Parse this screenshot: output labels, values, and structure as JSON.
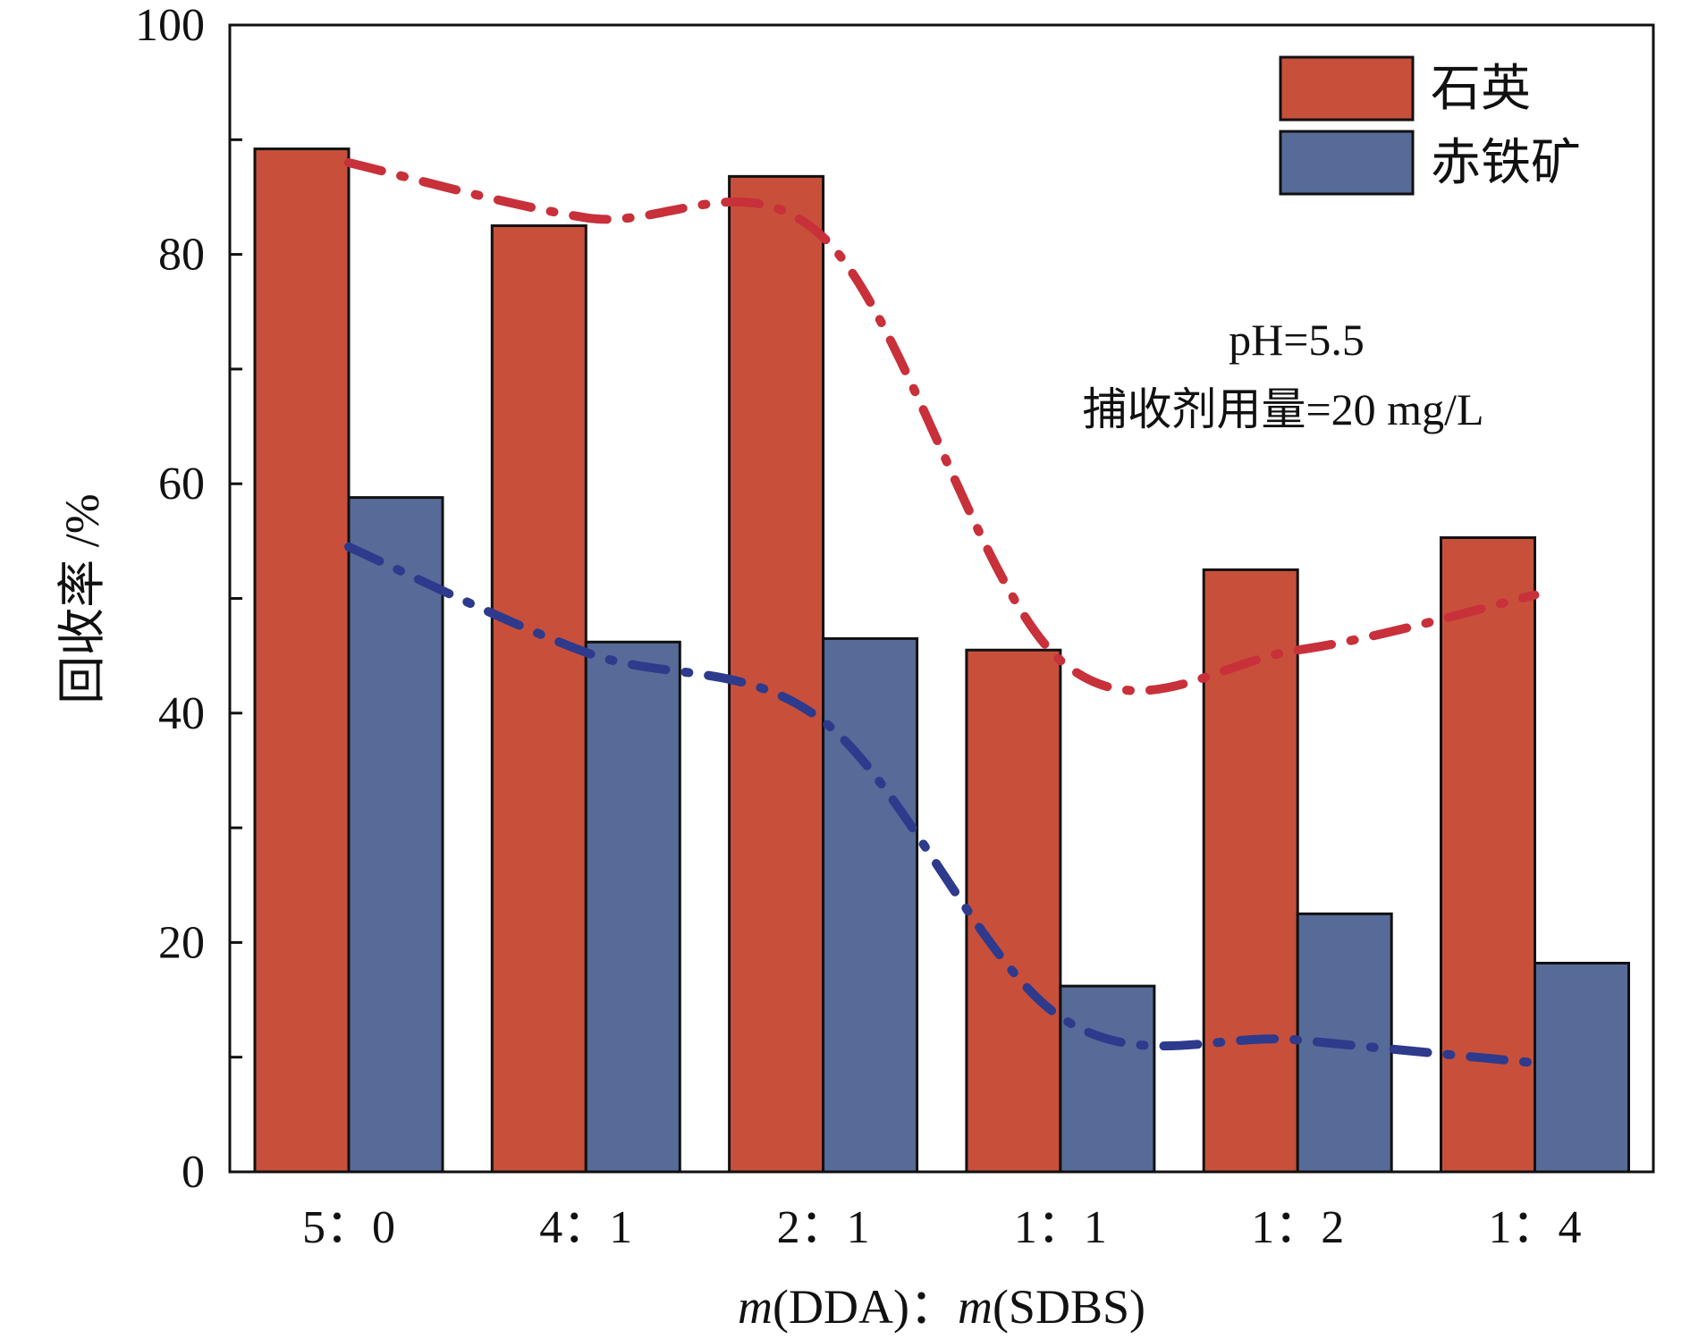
{
  "chart_data": {
    "type": "bar",
    "categories": [
      "5：0",
      "4：1",
      "2：1",
      "1：1",
      "1：2",
      "1：4"
    ],
    "series": [
      {
        "name": "石英",
        "values": [
          89.2,
          82.5,
          86.8,
          45.5,
          52.5,
          55.3
        ],
        "color": "#c8503b"
      },
      {
        "name": "赤铁矿",
        "values": [
          58.8,
          46.2,
          46.5,
          16.2,
          22.5,
          18.2
        ],
        "color": "#566b98"
      }
    ],
    "trend_lines": [
      {
        "values": [
          88.0,
          83.2,
          81.5,
          44.6,
          45.5,
          50.3
        ],
        "color": "#c8303a"
      },
      {
        "values": [
          54.5,
          45.3,
          39.3,
          13.5,
          11.5,
          9.5
        ],
        "color": "#2e3a8c"
      }
    ],
    "xlabel_parts": {
      "m1": "m",
      "t1": "(DDA)",
      "sep": "：",
      "m2": "m",
      "t2": "(SDBS)"
    },
    "ylabel": "回收率 /%",
    "ylim": [
      0,
      100
    ],
    "yticks": [
      0,
      20,
      40,
      60,
      80,
      100
    ],
    "legend_position": "top-right",
    "annotations": [
      "pH=5.5",
      "捕收剂用量=20 mg/L"
    ]
  }
}
